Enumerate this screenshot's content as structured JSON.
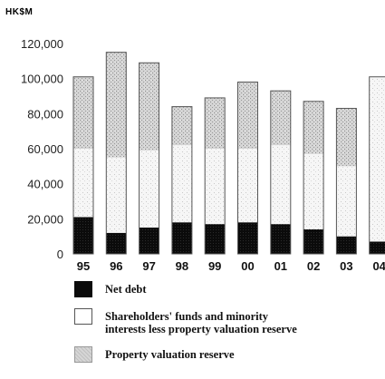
{
  "chart_data": {
    "type": "bar",
    "stacked": true,
    "unit_label": "HK$M",
    "categories": [
      "95",
      "96",
      "97",
      "98",
      "99",
      "00",
      "01",
      "02",
      "03",
      "04"
    ],
    "series": [
      {
        "name": "Net debt",
        "color": "#0b0b0b",
        "values": [
          21000,
          12000,
          15000,
          18000,
          17000,
          18000,
          17000,
          14000,
          10000,
          7000
        ]
      },
      {
        "name": "Shareholders' funds and minority interests less property valuation reserve",
        "color": "#ffffff",
        "values": [
          39000,
          43000,
          44000,
          44000,
          43000,
          42000,
          45000,
          43000,
          40000,
          94000
        ]
      },
      {
        "name": "Property valuation reserve",
        "color": "#d6d6d6",
        "values": [
          41000,
          60000,
          50000,
          22000,
          29000,
          38000,
          31000,
          30000,
          33000,
          0
        ]
      }
    ],
    "yticks": [
      "0",
      "20,000",
      "40,000",
      "60,000",
      "80,000",
      "100,000",
      "120,000"
    ],
    "ylim": [
      0,
      120000
    ],
    "grid": false,
    "legend_position": "bottom"
  },
  "legend": {
    "net_debt": "Net debt",
    "funds_line1": "Shareholders' funds and minority",
    "funds_line2": "interests less property valuation reserve",
    "reserve": "Property valuation reserve"
  }
}
